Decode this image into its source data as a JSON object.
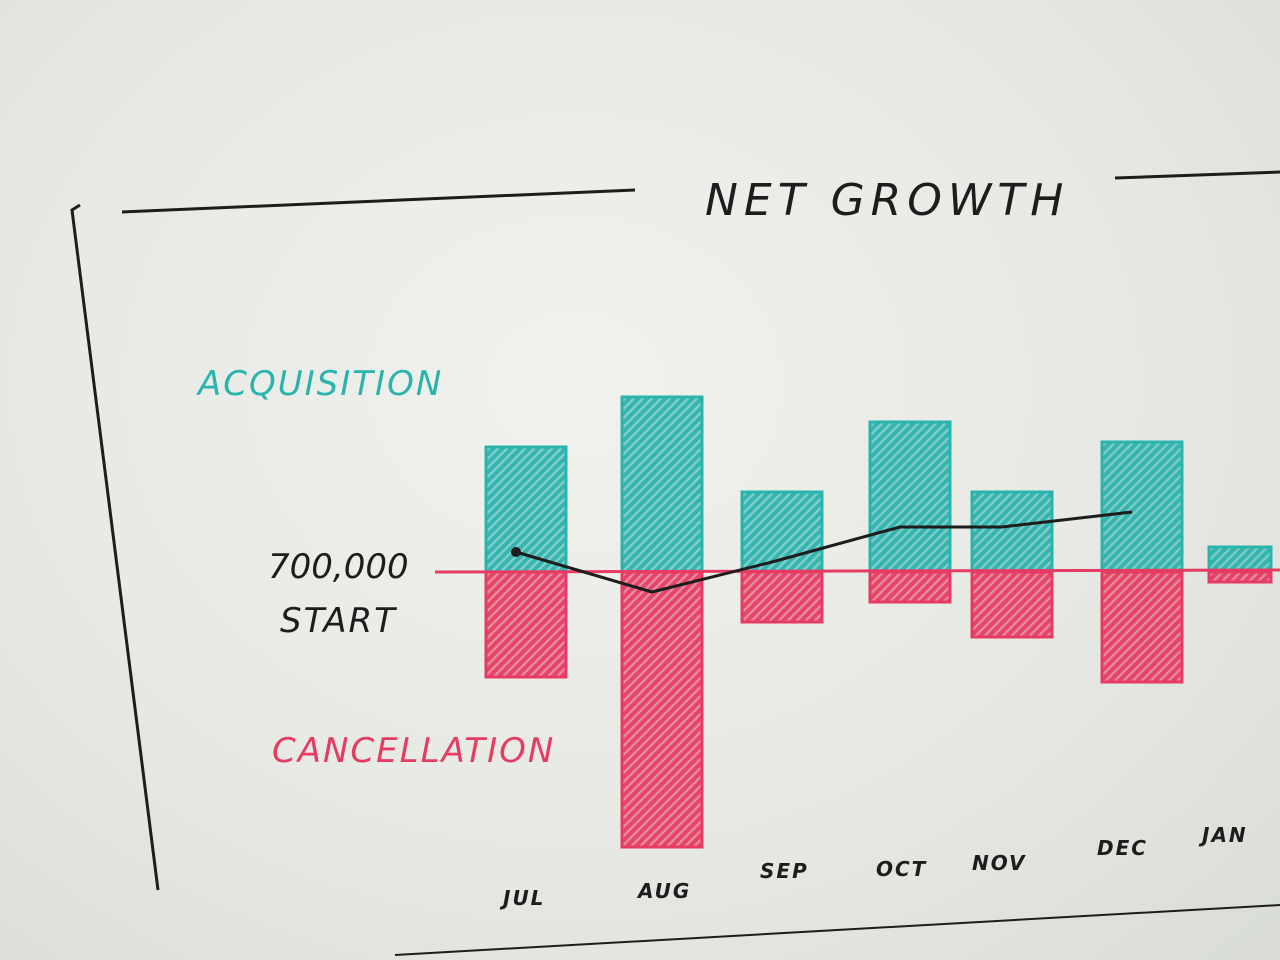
{
  "colors": {
    "acquisition": "#2bb3ad",
    "cancellation": "#e63c64",
    "ink": "#1d1d1d"
  },
  "chart_data": {
    "type": "bar",
    "title": "NET GROWTH",
    "baseline_label_value": "700,000",
    "baseline_label": "START",
    "categories": [
      "JUL",
      "AUG",
      "SEP",
      "OCT",
      "NOV",
      "DEC",
      "JAN"
    ],
    "series": [
      {
        "name": "ACQUISITION",
        "values": [
          125,
          175,
          80,
          150,
          80,
          130,
          25
        ]
      },
      {
        "name": "CANCELLATION",
        "values": [
          -105,
          -275,
          -50,
          -30,
          -65,
          -110,
          -10
        ]
      }
    ],
    "net_line": [
      20,
      -20,
      10,
      45,
      45,
      60
    ],
    "ylim": [
      -300,
      200
    ],
    "grid": false,
    "legend": "left"
  }
}
